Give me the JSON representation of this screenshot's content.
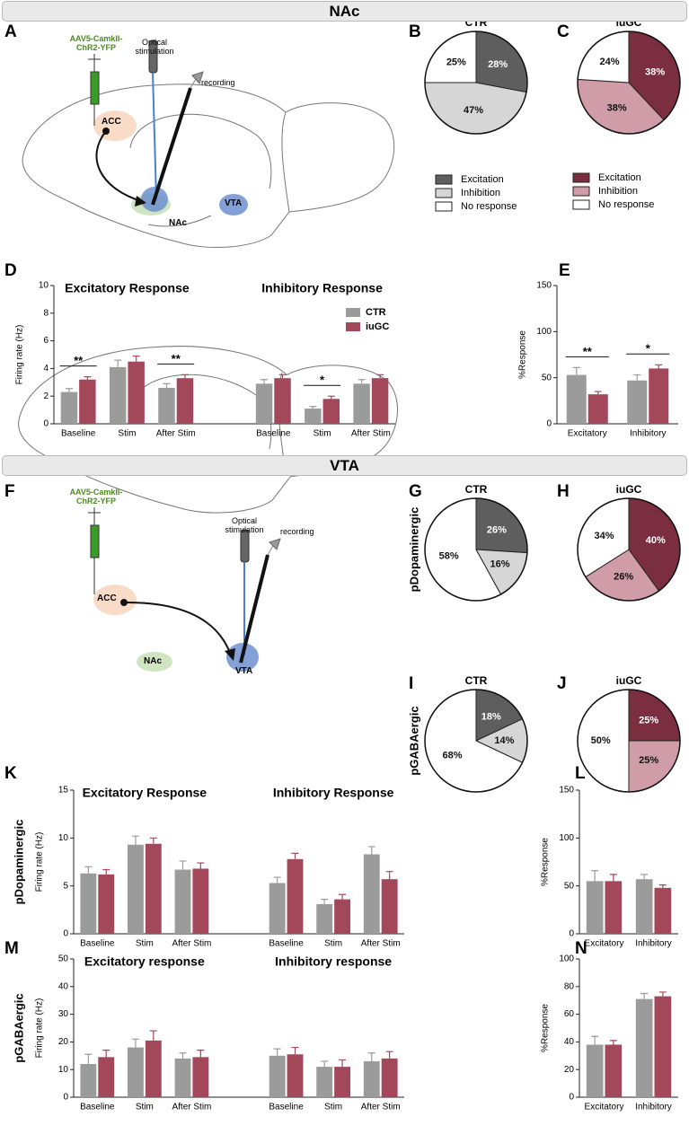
{
  "headers": [
    "NAc",
    "VTA"
  ],
  "panel_letters": [
    "A",
    "B",
    "C",
    "D",
    "E",
    "F",
    "G",
    "H",
    "I",
    "J",
    "K",
    "L",
    "M",
    "N"
  ],
  "diagrams": [
    {
      "injection": "AAV5-CamkII-ChR2-YFP",
      "stimulation": "Optical stimulation",
      "recording": "recording",
      "regions": [
        "ACC",
        "NAc",
        "VTA"
      ]
    },
    {
      "injection": "AAV5-CamkII-ChR2-YFP",
      "stimulation": "Optical stimulation",
      "recording": "recording",
      "regions": [
        "ACC",
        "NAc",
        "VTA"
      ]
    }
  ],
  "chart_data": [
    {
      "type": "pie",
      "title": "CTR",
      "categories": [
        "Excitation",
        "Inhibition",
        "No response"
      ],
      "values": [
        28,
        47,
        25
      ],
      "value_labels": [
        "28%",
        "47%",
        "25%"
      ],
      "colors": [
        "#5e5e5e",
        "#d6d6d6",
        "#ffffff"
      ],
      "legend": true
    },
    {
      "type": "pie",
      "title": "iuGC",
      "categories": [
        "Excitation",
        "Inhibition",
        "No response"
      ],
      "values": [
        38,
        38,
        24
      ],
      "value_labels": [
        "38%",
        "38%",
        "24%"
      ],
      "colors": [
        "#7a2e40",
        "#cf9ca8",
        "#ffffff"
      ],
      "legend": true
    },
    {
      "type": "bar",
      "y_label": "Firing rate (Hz)",
      "group_titles": [
        "Excitatory Response",
        "Inhibitory Response"
      ],
      "categories": [
        "Baseline",
        "Stim",
        "After Stim",
        "Baseline",
        "Stim",
        "After Stim"
      ],
      "series": [
        {
          "name": "CTR",
          "color": "#9b9b9b",
          "values": [
            2.3,
            4.1,
            2.6,
            2.9,
            1.1,
            2.9
          ],
          "errors": [
            0.25,
            0.5,
            0.3,
            0.3,
            0.15,
            0.3
          ]
        },
        {
          "name": "iuGC",
          "color": "#a3475b",
          "values": [
            3.2,
            4.5,
            3.3,
            3.3,
            1.8,
            3.3
          ],
          "errors": [
            0.2,
            0.4,
            0.25,
            0.25,
            0.2,
            0.25
          ]
        }
      ],
      "annotations": [
        {
          "text": "**",
          "category": 0
        },
        {
          "text": "**",
          "category": 2
        },
        {
          "text": "*",
          "category": 4
        }
      ],
      "ylim": [
        0,
        10
      ],
      "yticks": [
        0,
        2,
        4,
        6,
        8,
        10
      ],
      "legend": "upper right"
    },
    {
      "type": "bar",
      "y_label": "%Response",
      "categories": [
        "Excitatory",
        "Inhibitory"
      ],
      "series": [
        {
          "color": "#9b9b9b",
          "values": [
            53,
            47
          ],
          "errors": [
            8,
            6
          ]
        },
        {
          "color": "#a3475b",
          "values": [
            32,
            60
          ],
          "errors": [
            3,
            4
          ]
        }
      ],
      "annotations": [
        {
          "text": "**",
          "category": 0
        },
        {
          "text": "*",
          "category": 1
        }
      ],
      "ylim": [
        0,
        150
      ],
      "yticks": [
        0,
        50,
        100,
        150
      ]
    },
    {
      "type": "pie",
      "title": "CTR",
      "row_label": "pDopaminergic",
      "values": [
        26,
        16,
        58
      ],
      "value_labels": [
        "26%",
        "16%",
        "58%"
      ],
      "colors": [
        "#5e5e5e",
        "#d6d6d6",
        "#ffffff"
      ]
    },
    {
      "type": "pie",
      "title": "iuGC",
      "values": [
        40,
        26,
        34
      ],
      "value_labels": [
        "40%",
        "26%",
        "34%"
      ],
      "colors": [
        "#7a2e40",
        "#cf9ca8",
        "#ffffff"
      ]
    },
    {
      "type": "pie",
      "title": "CTR",
      "row_label": "pGABAergic",
      "values": [
        18,
        14,
        68
      ],
      "value_labels": [
        "18%",
        "14%",
        "68%"
      ],
      "colors": [
        "#5e5e5e",
        "#d6d6d6",
        "#ffffff"
      ]
    },
    {
      "type": "pie",
      "title": "iuGC",
      "values": [
        25,
        25,
        50
      ],
      "value_labels": [
        "25%",
        "25%",
        "50%"
      ],
      "colors": [
        "#7a2e40",
        "#cf9ca8",
        "#ffffff"
      ]
    },
    {
      "type": "bar",
      "row_label": "pDopaminergic",
      "y_label": "Firing rate (Hz)",
      "group_titles": [
        "Excitatory Response",
        "Inhibitory Response"
      ],
      "categories": [
        "Baseline",
        "Stim",
        "After Stim",
        "Baseline",
        "Stim",
        "After Stim"
      ],
      "series": [
        {
          "color": "#9b9b9b",
          "values": [
            6.3,
            9.3,
            6.7,
            5.3,
            3.1,
            8.3
          ],
          "errors": [
            0.7,
            0.9,
            0.9,
            0.6,
            0.5,
            0.8
          ]
        },
        {
          "color": "#a3475b",
          "values": [
            6.2,
            9.4,
            6.8,
            7.8,
            3.6,
            5.7
          ],
          "errors": [
            0.5,
            0.6,
            0.6,
            0.6,
            0.5,
            0.8
          ]
        }
      ],
      "ylim": [
        0,
        15
      ],
      "yticks": [
        0,
        5,
        10,
        15
      ]
    },
    {
      "type": "bar",
      "y_label": "%Response",
      "categories": [
        "Excitatory",
        "Inhibitory"
      ],
      "series": [
        {
          "color": "#9b9b9b",
          "values": [
            55,
            57
          ],
          "errors": [
            11,
            5
          ]
        },
        {
          "color": "#a3475b",
          "values": [
            55,
            48
          ],
          "errors": [
            7,
            3
          ]
        }
      ],
      "ylim": [
        0,
        150
      ],
      "yticks": [
        0,
        50,
        100,
        150
      ]
    },
    {
      "type": "bar",
      "row_label": "pGABAergic",
      "y_label": "Firing rate (Hz)",
      "group_titles": [
        "Excitatory response",
        "Inhibitory response"
      ],
      "categories": [
        "Baseline",
        "Stim",
        "After Stim",
        "Baseline",
        "Stim",
        "After Stim"
      ],
      "series": [
        {
          "color": "#9b9b9b",
          "values": [
            12,
            18,
            14,
            15,
            11,
            13
          ],
          "errors": [
            3.5,
            3,
            2,
            2.5,
            2,
            3
          ]
        },
        {
          "color": "#a3475b",
          "values": [
            14.5,
            20.5,
            14.5,
            15.5,
            11,
            14
          ],
          "errors": [
            2.5,
            3.5,
            2.5,
            2.5,
            2.5,
            2.5
          ]
        }
      ],
      "ylim": [
        0,
        50
      ],
      "yticks": [
        0,
        10,
        20,
        30,
        40,
        50
      ]
    },
    {
      "type": "bar",
      "y_label": "%Response",
      "categories": [
        "Excitatory",
        "Inhibitory"
      ],
      "series": [
        {
          "color": "#9b9b9b",
          "values": [
            38,
            71
          ],
          "errors": [
            6,
            4
          ]
        },
        {
          "color": "#a3475b",
          "values": [
            38,
            73
          ],
          "errors": [
            3,
            3
          ]
        }
      ],
      "ylim": [
        0,
        100
      ],
      "yticks": [
        0,
        20,
        40,
        60,
        80,
        100
      ]
    }
  ]
}
